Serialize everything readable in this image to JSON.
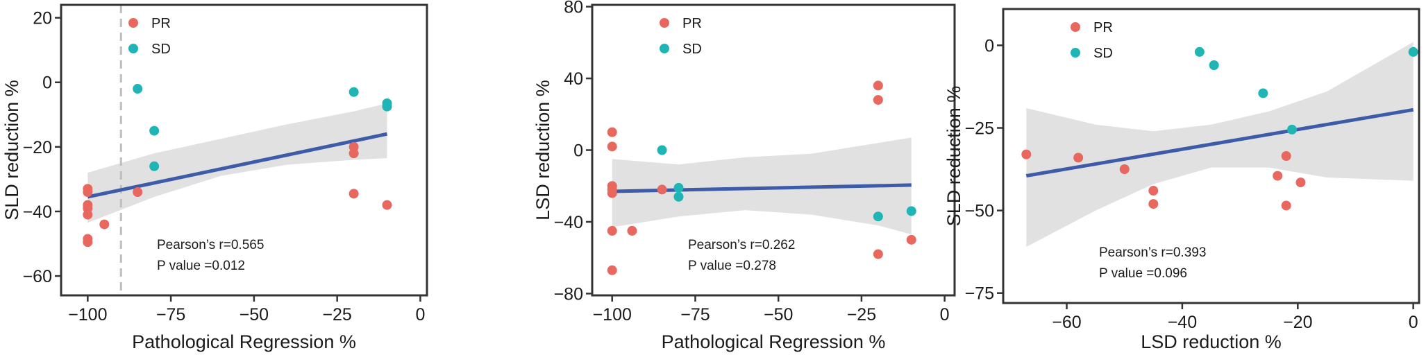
{
  "colors": {
    "PR": "#e8675f",
    "SD": "#1fb5b5",
    "fit": "#3d5ba8",
    "ci": "#e1e1e1",
    "frame": "#333333",
    "vline": "#bdbdbd"
  },
  "chart_data": [
    {
      "type": "scatter",
      "xlabel": "Pathological Regression %",
      "ylabel": "SLD reduction %",
      "xlim": [
        -108,
        2
      ],
      "ylim": [
        -66,
        24
      ],
      "xticks": [
        -100,
        -75,
        -50,
        -25,
        0
      ],
      "yticks": [
        -60,
        -40,
        -20,
        0,
        20
      ],
      "xtick_labels": [
        "−100",
        "−75",
        "−50",
        "−25",
        "0"
      ],
      "ytick_labels": [
        "−60",
        "−40",
        "−20",
        "0",
        "20"
      ],
      "legend": [
        "PR",
        "SD"
      ],
      "legend_position": "top-left",
      "vline_x": -90,
      "series": [
        {
          "name": "PR",
          "points": [
            [
              -100,
              -33
            ],
            [
              -100,
              -34
            ],
            [
              -100,
              -38
            ],
            [
              -100,
              -39
            ],
            [
              -100,
              -41
            ],
            [
              -100,
              -48.5
            ],
            [
              -100,
              -49.5
            ],
            [
              -95,
              -44
            ],
            [
              -85,
              -34
            ],
            [
              -20,
              -20
            ],
            [
              -20,
              -22
            ],
            [
              -20,
              -34.5
            ],
            [
              -10,
              -38
            ]
          ]
        },
        {
          "name": "SD",
          "points": [
            [
              -85,
              -2
            ],
            [
              -80,
              -15
            ],
            [
              -80,
              -26
            ],
            [
              -20,
              -3
            ],
            [
              -10,
              -6.5
            ],
            [
              -10,
              -7.5
            ]
          ]
        }
      ],
      "fit": {
        "x": [
          -100,
          -10
        ],
        "y": [
          -35.5,
          -16
        ]
      },
      "ci": {
        "x": [
          -100,
          -80,
          -60,
          -40,
          -20,
          -10
        ],
        "upper": [
          -28,
          -22,
          -17.5,
          -13,
          -9,
          -6.5
        ],
        "lower": [
          -43.5,
          -35.5,
          -29,
          -25.5,
          -24,
          -23.5
        ]
      },
      "annotation": [
        "Pearson’s r=0.565",
        "P value =0.012"
      ]
    },
    {
      "type": "scatter",
      "xlabel": "Pathological Regression %",
      "ylabel": "LSD reduction %",
      "xlim": [
        -106,
        3
      ],
      "ylim": [
        -81,
        81
      ],
      "xticks": [
        -100,
        -75,
        -50,
        -25,
        0
      ],
      "yticks": [
        -80,
        -40,
        0,
        40,
        80
      ],
      "xtick_labels": [
        "−100",
        "−75",
        "−50",
        "−25",
        "0"
      ],
      "ytick_labels": [
        "−80",
        "−40",
        "0",
        "40",
        "80"
      ],
      "legend": [
        "PR",
        "SD"
      ],
      "legend_position": "top-left",
      "series": [
        {
          "name": "PR",
          "points": [
            [
              -100,
              10
            ],
            [
              -100,
              2
            ],
            [
              -100,
              -20
            ],
            [
              -100,
              -22
            ],
            [
              -100,
              -24
            ],
            [
              -100,
              -45
            ],
            [
              -100,
              -67
            ],
            [
              -94,
              -45
            ],
            [
              -85,
              -22
            ],
            [
              -20,
              36
            ],
            [
              -20,
              28
            ],
            [
              -20,
              -58
            ],
            [
              -10,
              -50
            ]
          ]
        },
        {
          "name": "SD",
          "points": [
            [
              -85,
              0
            ],
            [
              -80,
              -21
            ],
            [
              -80,
              -26
            ],
            [
              -20,
              -37
            ],
            [
              -10,
              -34
            ]
          ]
        }
      ],
      "fit": {
        "x": [
          -100,
          -10
        ],
        "y": [
          -23,
          -19.5
        ]
      },
      "ci": {
        "x": [
          -100,
          -80,
          -60,
          -40,
          -20,
          -10
        ],
        "upper": [
          -5,
          -8,
          -4,
          -2,
          4,
          7
        ],
        "lower": [
          -43,
          -37,
          -33.5,
          -36,
          -42,
          -47
        ]
      },
      "annotation": [
        "Pearson’s r=0.262",
        "P value =0.278"
      ]
    },
    {
      "type": "scatter",
      "xlabel": "LSD reduction %",
      "ylabel": "SLD reduction %",
      "xlim": [
        -71,
        1
      ],
      "ylim": [
        -78,
        11
      ],
      "xticks": [
        -60,
        -40,
        -20,
        0
      ],
      "yticks": [
        -75,
        -50,
        -25,
        0
      ],
      "xtick_labels": [
        "−60",
        "−40",
        "−20",
        "0"
      ],
      "ytick_labels": [
        "−75",
        "−50",
        "−25",
        "0"
      ],
      "legend": [
        "PR",
        "SD"
      ],
      "legend_position": "top-left",
      "series": [
        {
          "name": "PR",
          "points": [
            [
              -67,
              -33
            ],
            [
              -58,
              -34
            ],
            [
              -50,
              -37.5
            ],
            [
              -45,
              -44
            ],
            [
              -45,
              -48
            ],
            [
              -23.5,
              -39.5
            ],
            [
              -22,
              -33.5
            ],
            [
              -22,
              -48.5
            ],
            [
              -19.5,
              -41.5
            ]
          ]
        },
        {
          "name": "SD",
          "points": [
            [
              -37,
              -2
            ],
            [
              -34.5,
              -6
            ],
            [
              -26,
              -14.5
            ],
            [
              -21,
              -25.5
            ],
            [
              0,
              -2
            ]
          ]
        }
      ],
      "fit": {
        "x": [
          -67,
          0
        ],
        "y": [
          -39.5,
          -19.5
        ]
      },
      "ci": {
        "x": [
          -67,
          -55,
          -45,
          -35,
          -25,
          -15,
          0
        ],
        "upper": [
          -19,
          -24,
          -26,
          -24,
          -20,
          -14,
          1
        ],
        "lower": [
          -61,
          -50,
          -42,
          -37,
          -37,
          -40,
          -41
        ]
      },
      "annotation": [
        "Pearson’s r=0.393",
        "P value =0.096"
      ]
    }
  ]
}
